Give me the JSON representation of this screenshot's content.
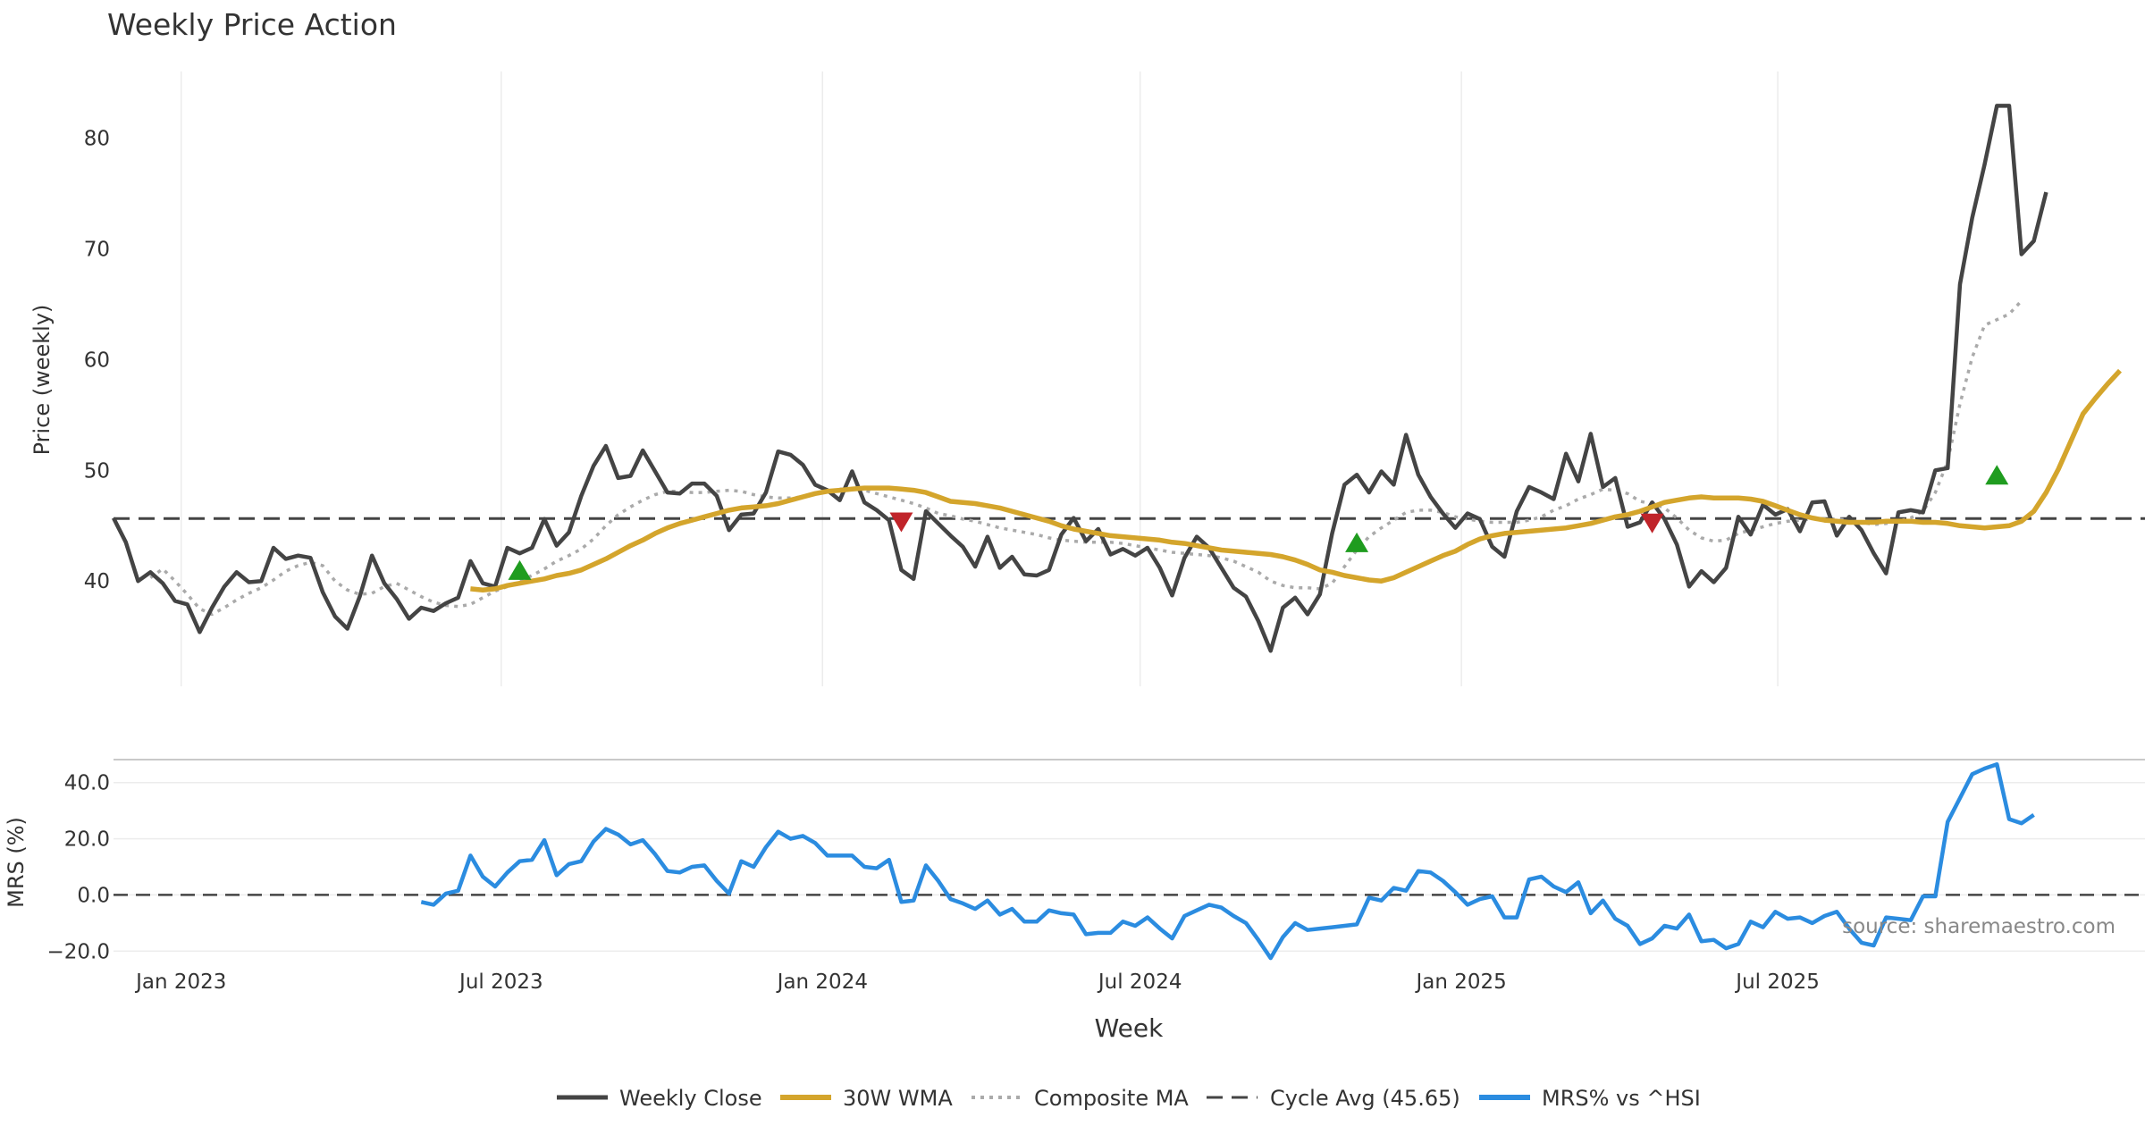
{
  "chart_data": {
    "type": "line",
    "title": "Weekly Price Action",
    "source": "source: sharemaestro.com",
    "xlabel": "Week",
    "x_ticks": [
      "Jan 2023",
      "Jul 2023",
      "Jan 2024",
      "Jul 2024",
      "Jan 2025",
      "Jul 2025"
    ],
    "price_panel": {
      "ylabel": "Price (weekly)",
      "ylim": [
        30.5,
        86
      ],
      "y_ticks": [
        "40",
        "50",
        "60",
        "70",
        "80"
      ],
      "cycle_avg": 45.65
    },
    "mrs_panel": {
      "ylabel": "MRS (%)",
      "ylim": [
        -25,
        45
      ],
      "y_ticks": [
        "−20.0",
        "0.0",
        "20.0",
        "40.0"
      ]
    },
    "x_range_weeks": [
      0,
      163
    ],
    "colors": {
      "close": "#444444",
      "wma": "#d4a52c",
      "composite": "#aaaaaa",
      "cycle": "#444444",
      "mrs": "#2b8ce0",
      "buy": "#1f9c1f",
      "sell": "#c0242a"
    },
    "legend": [
      {
        "label": "Weekly Close",
        "style": "solid-dark"
      },
      {
        "label": "30W WMA",
        "style": "solid-gold"
      },
      {
        "label": "Composite MA",
        "style": "dotted-gray"
      },
      {
        "label": "Cycle Avg (45.65)",
        "style": "dashed-dark"
      },
      {
        "label": "MRS% vs ^HSI",
        "style": "solid-blue"
      }
    ],
    "series": [
      {
        "name": "Weekly Close",
        "start_week": 0,
        "values": [
          45.7,
          43.5,
          40.0,
          40.8,
          39.8,
          38.2,
          37.9,
          35.4,
          37.6,
          39.5,
          40.8,
          39.9,
          40.0,
          43.0,
          42.0,
          42.3,
          42.1,
          39.0,
          36.8,
          35.7,
          38.6,
          42.3,
          39.8,
          38.4,
          36.6,
          37.6,
          37.3,
          38.0,
          38.5,
          41.8,
          39.8,
          39.5,
          43.0,
          42.5,
          43.0,
          45.6,
          43.2,
          44.4,
          47.7,
          50.4,
          52.2,
          49.3,
          49.5,
          51.8,
          49.9,
          48.0,
          47.9,
          48.8,
          48.8,
          47.7,
          44.6,
          46.0,
          46.1,
          48.0,
          51.7,
          51.4,
          50.5,
          48.7,
          48.2,
          47.3,
          49.9,
          47.1,
          46.4,
          45.5,
          41.0,
          40.2,
          46.3,
          45.2,
          44.1,
          43.1,
          41.3,
          44.0,
          41.2,
          42.2,
          40.6,
          40.5,
          41.0,
          44.2,
          45.7,
          43.6,
          44.7,
          42.4,
          42.9,
          42.3,
          43.0,
          41.2,
          38.7,
          42.1,
          44.0,
          43.0,
          41.2,
          39.4,
          38.6,
          36.4,
          33.7,
          37.6,
          38.5,
          37.0,
          38.8,
          44.3,
          48.7,
          49.6,
          48.0,
          49.9,
          48.7,
          53.2,
          49.6,
          47.6,
          46.1,
          44.8,
          46.1,
          45.6,
          43.1,
          42.2,
          46.3,
          48.5,
          48.0,
          47.4,
          51.5,
          49.0,
          53.3,
          48.5,
          49.3,
          44.9,
          45.3,
          47.1,
          45.6,
          43.3,
          39.5,
          40.9,
          39.9,
          41.2,
          45.8,
          44.2,
          46.9,
          46.0,
          46.5,
          44.5,
          47.1,
          47.2,
          44.1,
          45.8,
          44.6,
          42.5,
          40.7,
          46.2,
          46.4,
          46.2,
          50.0,
          50.2,
          66.8,
          72.8,
          77.6,
          82.9,
          82.9,
          69.5,
          70.7,
          75.1
        ]
      },
      {
        "name": "30W WMA",
        "start_week": 29,
        "values": [
          39.3,
          39.2,
          39.3,
          39.6,
          39.8,
          40.0,
          40.2,
          40.5,
          40.7,
          41.0,
          41.5,
          42.0,
          42.6,
          43.2,
          43.7,
          44.3,
          44.8,
          45.2,
          45.5,
          45.8,
          46.1,
          46.4,
          46.6,
          46.7,
          46.8,
          47.0,
          47.3,
          47.6,
          47.9,
          48.1,
          48.2,
          48.3,
          48.4,
          48.4,
          48.4,
          48.3,
          48.2,
          48.0,
          47.6,
          47.2,
          47.1,
          47.0,
          46.8,
          46.6,
          46.3,
          46.0,
          45.7,
          45.4,
          45.0,
          44.7,
          44.5,
          44.3,
          44.1,
          44.0,
          43.9,
          43.8,
          43.7,
          43.5,
          43.4,
          43.2,
          43.0,
          42.8,
          42.7,
          42.6,
          42.5,
          42.4,
          42.2,
          41.9,
          41.5,
          41.0,
          40.8,
          40.5,
          40.3,
          40.1,
          40.0,
          40.3,
          40.8,
          41.3,
          41.8,
          42.3,
          42.7,
          43.3,
          43.8,
          44.1,
          44.3,
          44.4,
          44.5,
          44.6,
          44.7,
          44.8,
          45.0,
          45.2,
          45.5,
          45.8,
          46.0,
          46.3,
          46.7,
          47.1,
          47.3,
          47.5,
          47.6,
          47.5,
          47.5,
          47.5,
          47.4,
          47.2,
          46.8,
          46.4,
          46.0,
          45.7,
          45.5,
          45.4,
          45.3,
          45.3,
          45.3,
          45.4,
          45.4,
          45.4,
          45.3,
          45.3,
          45.2,
          45.0,
          44.9,
          44.8,
          44.9,
          45.0,
          45.4,
          46.3,
          48.0,
          50.1,
          52.6,
          55.1,
          56.5,
          57.8,
          59.0
        ]
      },
      {
        "name": "Composite MA",
        "start_week": 3,
        "values": [
          40.3,
          41.1,
          40.0,
          38.8,
          37.5,
          37.0,
          37.6,
          38.3,
          38.9,
          39.4,
          40.1,
          40.9,
          41.4,
          41.7,
          41.4,
          40.0,
          39.2,
          38.8,
          38.9,
          39.5,
          39.8,
          39.2,
          38.6,
          38.1,
          37.8,
          37.7,
          37.9,
          38.5,
          39.1,
          39.5,
          40.0,
          40.5,
          41.1,
          41.8,
          42.3,
          42.9,
          43.8,
          45.0,
          46.0,
          46.7,
          47.3,
          47.8,
          48.1,
          48.1,
          48.0,
          48.0,
          48.1,
          48.2,
          48.1,
          47.8,
          47.6,
          47.5,
          47.5,
          47.6,
          47.9,
          48.1,
          48.3,
          48.3,
          48.2,
          47.9,
          47.6,
          47.3,
          47.0,
          46.6,
          46.1,
          45.9,
          45.6,
          45.4,
          45.1,
          44.8,
          44.6,
          44.4,
          44.2,
          43.9,
          43.7,
          43.6,
          43.5,
          43.5,
          43.5,
          43.4,
          43.2,
          43.0,
          42.8,
          42.6,
          42.5,
          42.4,
          42.3,
          42.1,
          41.8,
          41.3,
          40.8,
          40.0,
          39.6,
          39.4,
          39.4,
          39.3,
          39.8,
          41.3,
          42.8,
          44.0,
          44.8,
          45.5,
          46.2,
          46.4,
          46.4,
          46.2,
          45.8,
          45.6,
          45.4,
          45.3,
          45.3,
          45.3,
          45.5,
          45.8,
          46.4,
          46.8,
          47.4,
          47.8,
          48.3,
          48.2,
          47.9,
          47.2,
          47.0,
          46.6,
          45.7,
          44.6,
          43.9,
          43.6,
          43.7,
          44.3,
          44.6,
          44.9,
          45.2,
          45.4,
          45.5,
          45.6,
          45.6,
          45.6,
          45.5,
          45.3,
          45.1,
          45.2,
          45.4,
          45.7,
          46.3,
          48.0,
          50.8,
          56.0,
          60.2,
          63.1,
          63.6,
          64.1,
          65.3
        ]
      },
      {
        "name": "MRS% vs ^HSI",
        "start_week": 25,
        "values": [
          -2.5,
          -3.5,
          0.5,
          1.5,
          14.0,
          6.5,
          3.0,
          8.0,
          12.0,
          12.5,
          19.5,
          7.0,
          11.0,
          12.0,
          19.0,
          23.5,
          21.5,
          18.0,
          19.5,
          14.5,
          8.5,
          8.0,
          10.0,
          10.5,
          5.0,
          0.5,
          12.0,
          10.0,
          17.0,
          22.5,
          20.0,
          21.0,
          18.5,
          14.0,
          14.0,
          14.0,
          10.0,
          9.5,
          12.5,
          -2.5,
          -2.0,
          10.5,
          5.0,
          -1.5,
          -3.0,
          -5.0,
          -2.0,
          -7.0,
          -5.0,
          -9.5,
          -9.5,
          -5.5,
          -6.5,
          -7.0,
          -14.0,
          -13.5,
          -13.5,
          -9.5,
          -11.0,
          -8.0,
          -12.0,
          -15.5,
          -7.5,
          -5.5,
          -3.5,
          -4.5,
          -7.5,
          -10.0,
          -16.0,
          -22.5,
          -15.0,
          -10.0,
          -12.5,
          -12.0,
          -11.5,
          -11.0,
          -10.5,
          -1.0,
          -2.0,
          2.5,
          1.5,
          8.5,
          8.0,
          5.0,
          1.0,
          -3.5,
          -1.5,
          -0.5,
          -8.0,
          -8.0,
          5.5,
          6.5,
          3.0,
          1.0,
          4.5,
          -6.5,
          -2.0,
          -8.5,
          -11.0,
          -17.5,
          -15.5,
          -11.0,
          -12.0,
          -7.0,
          -16.5,
          -16.0,
          -19.0,
          -17.5,
          -9.5,
          -11.5,
          -6.0,
          -8.5,
          -8.0,
          -10.0,
          -7.5,
          -6.0,
          -12.0,
          -17.0,
          -18.0,
          -8.0,
          -8.5,
          -9.0,
          -0.5,
          -0.5,
          26.0,
          34.5,
          43.0,
          45.0,
          46.5,
          27.0,
          25.5,
          28.5
        ]
      }
    ],
    "signals": [
      {
        "type": "buy",
        "week": 33,
        "price": 41.0
      },
      {
        "type": "sell",
        "week": 64,
        "price": 45.3
      },
      {
        "type": "buy",
        "week": 101,
        "price": 43.5
      },
      {
        "type": "sell",
        "week": 125,
        "price": 45.2
      },
      {
        "type": "buy",
        "week": 153,
        "price": 49.6
      }
    ]
  }
}
